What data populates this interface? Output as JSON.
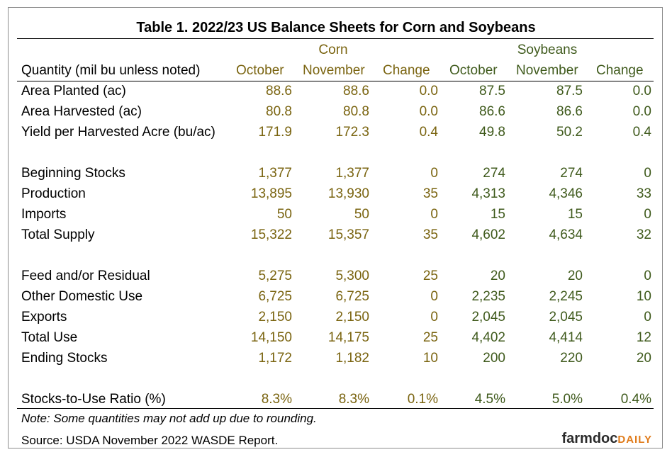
{
  "title": "Table 1. 2022/23 US Balance Sheets for Corn and Soybeans",
  "header": {
    "corn": "Corn",
    "soybeans": "Soybeans",
    "quantity_label": "Quantity (mil bu unless noted)",
    "columns": [
      "October",
      "November",
      "Change",
      "October",
      "November",
      "Change"
    ]
  },
  "rows": [
    {
      "label": "Area Planted (ac)",
      "values": [
        "88.6",
        "88.6",
        "0.0",
        "87.5",
        "87.5",
        "0.0"
      ]
    },
    {
      "label": "Area Harvested (ac)",
      "values": [
        "80.8",
        "80.8",
        "0.0",
        "86.6",
        "86.6",
        "0.0"
      ]
    },
    {
      "label": "Yield per Harvested Acre (bu/ac)",
      "values": [
        "171.9",
        "172.3",
        "0.4",
        "49.8",
        "50.2",
        "0.4"
      ]
    },
    {
      "label": "Beginning Stocks",
      "values": [
        "1,377",
        "1,377",
        "0",
        "274",
        "274",
        "0"
      ]
    },
    {
      "label": "Production",
      "values": [
        "13,895",
        "13,930",
        "35",
        "4,313",
        "4,346",
        "33"
      ]
    },
    {
      "label": "Imports",
      "values": [
        "50",
        "50",
        "0",
        "15",
        "15",
        "0"
      ]
    },
    {
      "label": "Total Supply",
      "values": [
        "15,322",
        "15,357",
        "35",
        "4,602",
        "4,634",
        "32"
      ]
    },
    {
      "label": "Feed and/or Residual",
      "values": [
        "5,275",
        "5,300",
        "25",
        "20",
        "20",
        "0"
      ]
    },
    {
      "label": "Other Domestic Use",
      "values": [
        "6,725",
        "6,725",
        "0",
        "2,235",
        "2,245",
        "10"
      ]
    },
    {
      "label": "Exports",
      "values": [
        "2,150",
        "2,150",
        "0",
        "2,045",
        "2,045",
        "0"
      ]
    },
    {
      "label": "Total Use",
      "values": [
        "14,150",
        "14,175",
        "25",
        "4,402",
        "4,414",
        "12"
      ]
    },
    {
      "label": "Ending Stocks",
      "values": [
        "1,172",
        "1,182",
        "10",
        "200",
        "220",
        "20"
      ]
    },
    {
      "label": "Stocks-to-Use Ratio (%)",
      "values": [
        "8.3%",
        "8.3%",
        "0.1%",
        "4.5%",
        "5.0%",
        "0.4%"
      ]
    }
  ],
  "note": "Note: Some quantities may not add up due to rounding.",
  "source": "Source: USDA November 2022 WASDE Report.",
  "logo": {
    "part1": "farmdoc",
    "part2": "DAILY"
  },
  "colors": {
    "corn": "#7a6410",
    "soybeans": "#3f5a1c"
  }
}
